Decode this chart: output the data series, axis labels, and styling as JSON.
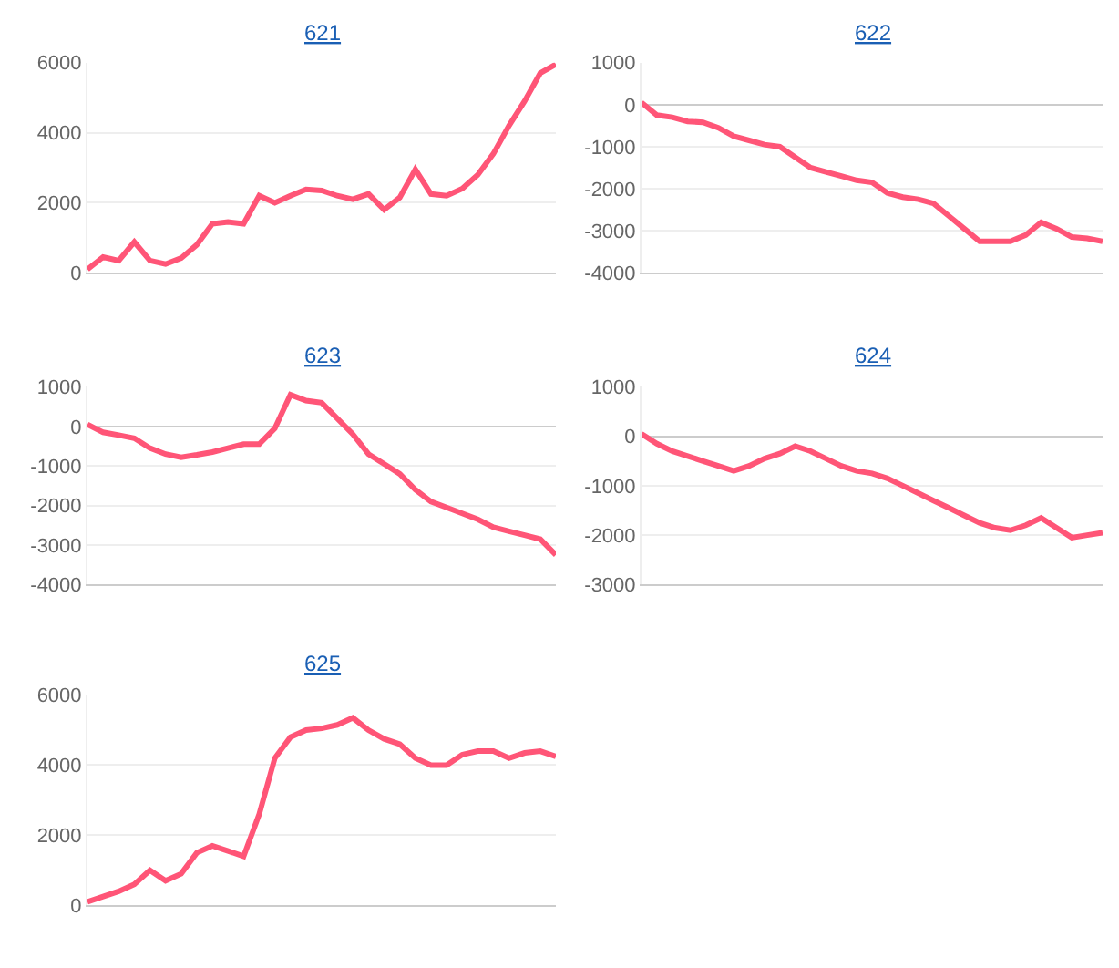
{
  "chart_data": [
    {
      "type": "line",
      "title": "621",
      "categories": [
        null,
        null,
        null,
        null,
        null,
        null,
        null,
        null,
        null,
        null,
        null,
        null,
        null,
        null,
        null,
        null,
        null,
        null,
        null,
        null,
        null,
        null,
        null,
        null,
        null,
        null,
        null,
        null,
        null,
        null,
        null
      ],
      "color": "#ff5577",
      "ylim": [
        0,
        6000
      ],
      "yticks": [
        0,
        2000,
        4000,
        6000
      ],
      "grid": "y",
      "tick_labels": "y",
      "values": [
        100,
        450,
        350,
        880,
        350,
        250,
        420,
        800,
        1400,
        1450,
        1400,
        2200,
        2000,
        2200,
        2380,
        2350,
        2200,
        2100,
        2250,
        1800,
        2150,
        2950,
        2250,
        2200,
        2400,
        2800,
        3400,
        4200,
        4900,
        5700,
        5950
      ]
    },
    {
      "type": "line",
      "title": "622",
      "categories": [
        null,
        null,
        null,
        null,
        null,
        null,
        null,
        null,
        null,
        null,
        null,
        null,
        null,
        null,
        null,
        null,
        null,
        null,
        null,
        null,
        null,
        null,
        null,
        null,
        null,
        null,
        null,
        null,
        null,
        null,
        null
      ],
      "color": "#ff5577",
      "ylim": [
        -4000,
        1000
      ],
      "yticks": [
        -4000,
        -3000,
        -2000,
        -1000,
        0,
        1000
      ],
      "grid": "y",
      "tick_labels": "y",
      "values": [
        50,
        -250,
        -300,
        -400,
        -420,
        -550,
        -750,
        -850,
        -950,
        -1000,
        -1250,
        -1500,
        -1600,
        -1700,
        -1800,
        -1850,
        -2100,
        -2200,
        -2250,
        -2350,
        -2650,
        -2950,
        -3250,
        -3250,
        -3250,
        -3100,
        -2800,
        -2950,
        -3150,
        -3180,
        -3250
      ]
    },
    {
      "type": "line",
      "title": "623",
      "categories": [
        null,
        null,
        null,
        null,
        null,
        null,
        null,
        null,
        null,
        null,
        null,
        null,
        null,
        null,
        null,
        null,
        null,
        null,
        null,
        null,
        null,
        null,
        null,
        null,
        null,
        null,
        null,
        null,
        null,
        null,
        null
      ],
      "color": "#ff5577",
      "ylim": [
        -4000,
        1000
      ],
      "yticks": [
        -4000,
        -3000,
        -2000,
        -1000,
        0,
        1000
      ],
      "grid": "y",
      "tick_labels": "y",
      "values": [
        50,
        -150,
        -220,
        -300,
        -550,
        -700,
        -780,
        -720,
        -650,
        -550,
        -450,
        -450,
        -50,
        800,
        650,
        600,
        200,
        -200,
        -700,
        -950,
        -1200,
        -1600,
        -1900,
        -2050,
        -2200,
        -2350,
        -2550,
        -2650,
        -2750,
        -2850,
        -3250
      ]
    },
    {
      "type": "line",
      "title": "624",
      "categories": [
        null,
        null,
        null,
        null,
        null,
        null,
        null,
        null,
        null,
        null,
        null,
        null,
        null,
        null,
        null,
        null,
        null,
        null,
        null,
        null,
        null,
        null,
        null,
        null,
        null,
        null,
        null,
        null,
        null,
        null,
        null
      ],
      "color": "#ff5577",
      "ylim": [
        -3000,
        1000
      ],
      "yticks": [
        -3000,
        -2000,
        -1000,
        0,
        1000
      ],
      "grid": "y",
      "tick_labels": "y",
      "values": [
        50,
        -150,
        -300,
        -400,
        -500,
        -600,
        -700,
        -600,
        -450,
        -350,
        -200,
        -300,
        -450,
        -600,
        -700,
        -750,
        -850,
        -1000,
        -1150,
        -1300,
        -1450,
        -1600,
        -1750,
        -1850,
        -1900,
        -1800,
        -1650,
        -1850,
        -2050,
        -2000,
        -1950
      ]
    },
    {
      "type": "line",
      "title": "625",
      "categories": [
        null,
        null,
        null,
        null,
        null,
        null,
        null,
        null,
        null,
        null,
        null,
        null,
        null,
        null,
        null,
        null,
        null,
        null,
        null,
        null,
        null,
        null,
        null,
        null,
        null,
        null,
        null,
        null,
        null,
        null,
        null
      ],
      "color": "#ff5577",
      "ylim": [
        0,
        6000
      ],
      "yticks": [
        0,
        2000,
        4000,
        6000
      ],
      "grid": "y",
      "tick_labels": "y",
      "values": [
        100,
        250,
        400,
        600,
        1000,
        700,
        900,
        1500,
        1700,
        1550,
        1400,
        2600,
        4200,
        4800,
        5000,
        5050,
        5150,
        5350,
        5000,
        4750,
        4600,
        4200,
        4000,
        4000,
        4300,
        4400,
        4400,
        4200,
        4350,
        4400,
        4250
      ]
    }
  ]
}
